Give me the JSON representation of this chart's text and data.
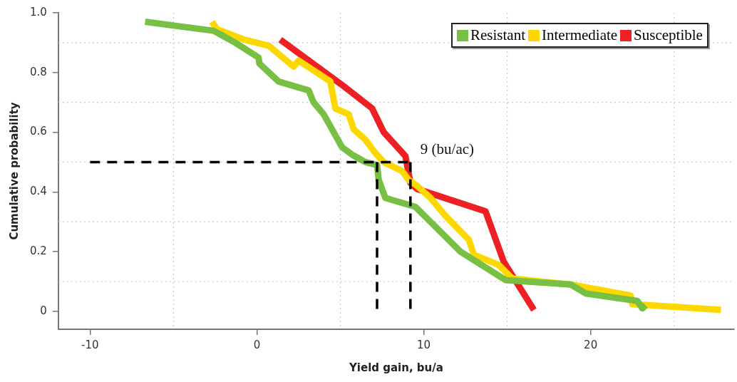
{
  "chart_data": {
    "type": "line",
    "xlabel": "Yield gain, bu/a",
    "ylabel": "Cumulative probability",
    "xlim": [
      -11.9,
      28.6
    ],
    "ylim": [
      -0.06,
      1.0
    ],
    "xticks": [
      -10,
      0,
      10,
      20
    ],
    "yticks": [
      0,
      0.2,
      0.4,
      0.6,
      0.8,
      {
        "value": 1.0,
        "label": "1.0"
      }
    ],
    "grid": true,
    "legend": "top right",
    "marker": "none",
    "line_style": "solid",
    "series": [
      {
        "name": "Resistant",
        "color": "#77c043",
        "x": [
          -6.7,
          -2.6,
          -2.1,
          -1.3,
          0.1,
          0.15,
          1.3,
          3.1,
          3.4,
          4.0,
          4.4,
          5.1,
          5.7,
          6.5,
          7.2,
          7.3,
          7.7,
          9.5,
          11.3,
          12.2,
          14.9,
          18.8,
          19.7,
          22.8,
          23.1,
          23.3
        ],
        "values": [
          0.97,
          0.94,
          0.925,
          0.9,
          0.85,
          0.83,
          0.77,
          0.74,
          0.7,
          0.66,
          0.62,
          0.55,
          0.525,
          0.5,
          0.49,
          0.44,
          0.38,
          0.35,
          0.25,
          0.2,
          0.105,
          0.09,
          0.06,
          0.035,
          0.01,
          0.02
        ]
      },
      {
        "name": "Intermediate",
        "color": "#fdd800",
        "x": [
          -2.7,
          -2.4,
          -0.75,
          0.7,
          2.2,
          2.5,
          4.4,
          4.7,
          5.5,
          5.8,
          6.5,
          7.1,
          7.6,
          8.7,
          9.1,
          9.6,
          10.4,
          11.3,
          12.7,
          13.0,
          14.5,
          15.3,
          18.8,
          22.4,
          22.5,
          27.8
        ],
        "values": [
          0.97,
          0.945,
          0.91,
          0.89,
          0.82,
          0.84,
          0.77,
          0.68,
          0.66,
          0.61,
          0.575,
          0.53,
          0.5,
          0.47,
          0.44,
          0.42,
          0.38,
          0.32,
          0.24,
          0.19,
          0.155,
          0.11,
          0.09,
          0.053,
          0.024,
          0.005
        ]
      },
      {
        "name": "Susceptible",
        "color": "#ee2024",
        "x": [
          1.4,
          5.3,
          6.9,
          7.6,
          8.9,
          9.2,
          9.6,
          13.7,
          14.8,
          16.6
        ],
        "values": [
          0.91,
          0.75,
          0.68,
          0.6,
          0.52,
          0.43,
          0.41,
          0.335,
          0.165,
          0.005
        ]
      },
      {
        "color": "#000000",
        "line_style": "dashed",
        "x": [
          -10,
          9.2
        ],
        "values": [
          0.5,
          0.5
        ]
      },
      {
        "color": "#000000",
        "line_style": "dashed",
        "x": [
          7.2,
          7.2
        ],
        "values": [
          0.5,
          0
        ]
      },
      {
        "color": "#000000",
        "line_style": "dashed",
        "x": [
          9.2,
          9.2
        ],
        "values": [
          0.5,
          0
        ]
      }
    ],
    "annotations": [
      {
        "text": "9 (bu/ac)",
        "x": 9.2,
        "y": 0.5
      }
    ]
  }
}
